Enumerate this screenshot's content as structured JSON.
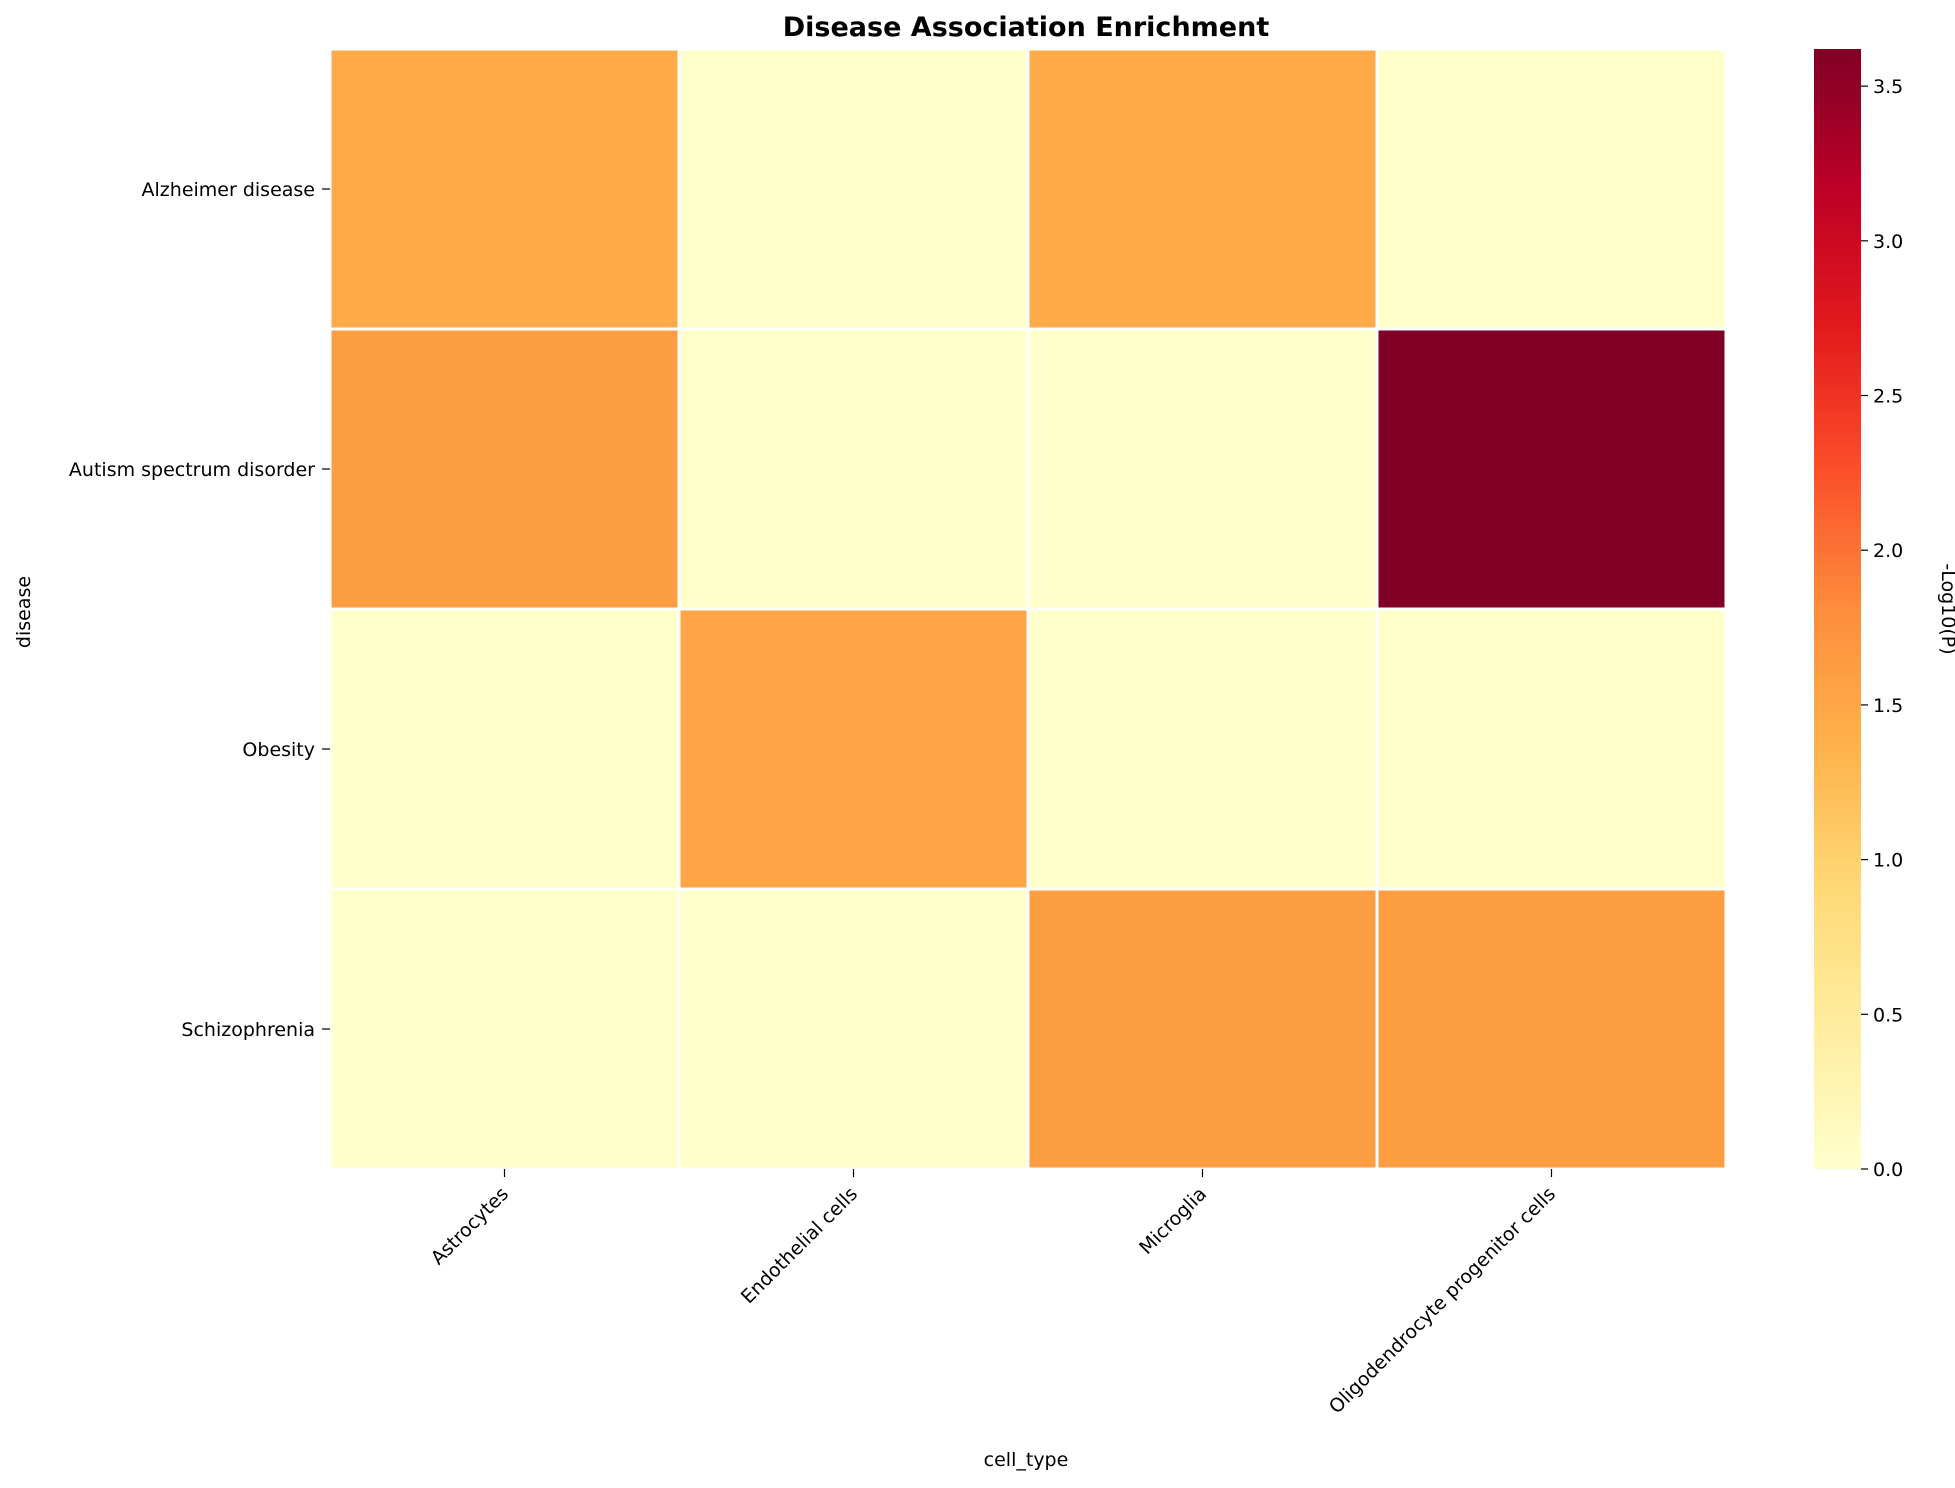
{
  "chart_data": {
    "type": "heatmap",
    "title": "Disease Association Enrichment",
    "xlabel": "cell_type",
    "ylabel": "disease",
    "x_categories": [
      "Astrocytes",
      "Endothelial cells",
      "Microglia",
      "Oligodendrocyte progenitor cells"
    ],
    "y_categories": [
      "Alzheimer disease",
      "Autism spectrum disorder",
      "Obesity",
      "Schizophrenia"
    ],
    "values": [
      [
        1.45,
        0.0,
        1.45,
        0.0
      ],
      [
        1.6,
        0.0,
        0.0,
        3.62
      ],
      [
        0.0,
        1.5,
        0.0,
        0.0
      ],
      [
        0.0,
        0.0,
        1.6,
        1.6
      ]
    ],
    "colorbar": {
      "label": "-Log10(P)",
      "range": [
        0.0,
        3.62
      ],
      "ticks": [
        0.0,
        0.5,
        1.0,
        1.5,
        2.0,
        2.5,
        3.0,
        3.5
      ],
      "tick_labels": [
        "0.0",
        "0.5",
        "1.0",
        "1.5",
        "2.0",
        "2.5",
        "3.0",
        "3.5"
      ],
      "colormap": "YlOrRd",
      "colormap_stops": [
        "#ffffcc",
        "#ffeda0",
        "#fed976",
        "#feb24c",
        "#fd8d3c",
        "#fc4e2a",
        "#e31a1c",
        "#bd0026",
        "#800026"
      ]
    },
    "cell_border_color": "#ffffff",
    "grid": false
  }
}
